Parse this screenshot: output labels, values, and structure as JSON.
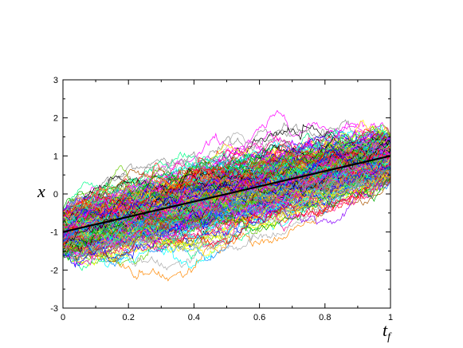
{
  "chart_data": {
    "type": "line",
    "title": "",
    "xlabel": "t_f",
    "ylabel": "x",
    "xlim": [
      0,
      1
    ],
    "ylim": [
      -3,
      3
    ],
    "x_ticks": [
      "0",
      "0.2",
      "0.4",
      "0.6",
      "0.8",
      "1"
    ],
    "y_ticks": [
      "-3",
      "-2",
      "-1",
      "0",
      "1",
      "2",
      "3"
    ],
    "grid": false,
    "legend": "none",
    "mean_line": {
      "x": [
        0,
        1
      ],
      "y": [
        -1,
        1
      ],
      "color": "#000000"
    },
    "ensemble": {
      "description_kind": "random-walk trajectories (Brownian bridge-like)",
      "start_range": [
        -1.6,
        -0.4
      ],
      "end_range": [
        0.3,
        1.6
      ],
      "colors": [
        "#ff0000",
        "#00aa00",
        "#0000ff",
        "#ff00ff",
        "#00ffff",
        "#ffff00",
        "#000000",
        "#ff8800",
        "#888888",
        "#8800ff",
        "#00ff88",
        "#aa5500",
        "#ff0088",
        "#0088ff",
        "#66cc00",
        "#aaaaaa"
      ]
    }
  }
}
